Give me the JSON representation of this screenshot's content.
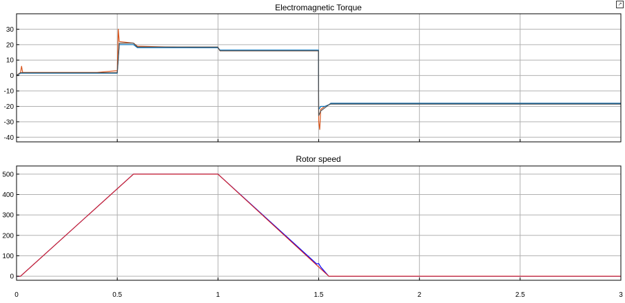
{
  "chart_data": [
    {
      "type": "line",
      "title": "Electromagnetic Torque",
      "xlabel": "",
      "ylabel": "",
      "xlim": [
        0,
        3
      ],
      "ylim": [
        -43,
        40
      ],
      "yticks": [
        30,
        20,
        10,
        0,
        -10,
        -20,
        -30,
        -40
      ],
      "ytick_labels": [
        "30",
        "20",
        "10",
        "0",
        "-10",
        "-20",
        "-30",
        "-40"
      ],
      "xticks": [
        0,
        0.5,
        1,
        1.5,
        2,
        2.5,
        3
      ],
      "grid": true,
      "legend": "none",
      "series": [
        {
          "color": "#d95319",
          "x": [
            0,
            0.02,
            0.025,
            0.03,
            0.4,
            0.49,
            0.5,
            0.505,
            0.51,
            0.58,
            0.6,
            0.9,
            0.999,
            1.0,
            1.01,
            1.3,
            1.499,
            1.5,
            1.505,
            1.51,
            1.53,
            1.55,
            1.56,
            2.0,
            2.5,
            3.0
          ],
          "y": [
            0,
            2,
            6,
            2,
            2,
            3,
            3,
            30,
            22,
            21,
            19,
            18,
            18,
            18,
            16,
            16,
            16,
            -30,
            -35,
            -22,
            -20,
            -19,
            -18,
            -18,
            -18,
            -18
          ]
        },
        {
          "color": "#0072bd",
          "x": [
            0,
            0.02,
            0.03,
            0.49,
            0.5,
            0.51,
            0.58,
            0.6,
            0.999,
            1.01,
            1.499,
            1.5,
            1.51,
            1.53,
            1.55,
            1.56,
            2.0,
            2.5,
            3.0
          ],
          "y": [
            0,
            1.5,
            1.5,
            1.5,
            1.5,
            20,
            20,
            18,
            18,
            16.5,
            16.5,
            -22,
            -20,
            -20,
            -19,
            -18,
            -18,
            -18,
            -18
          ]
        },
        {
          "color": "#4d4d4d",
          "x": [
            0,
            0.02,
            0.03,
            0.49,
            0.5,
            0.51,
            0.58,
            0.6,
            0.999,
            1.01,
            1.499,
            1.5,
            1.51,
            1.53,
            1.55,
            1.56,
            2.0,
            2.5,
            3.0
          ],
          "y": [
            0,
            1.8,
            1.8,
            1.8,
            1.8,
            21,
            21,
            18.5,
            18.5,
            16,
            16,
            -26,
            -23,
            -21,
            -19,
            -18.5,
            -18.5,
            -18.5,
            -18.5
          ]
        }
      ]
    },
    {
      "type": "line",
      "title": "Rotor speed",
      "xlabel": "",
      "ylabel": "",
      "xlim": [
        0,
        3
      ],
      "ylim": [
        -20,
        540
      ],
      "yticks": [
        500,
        400,
        300,
        200,
        100,
        0
      ],
      "ytick_labels": [
        "500",
        "400",
        "300",
        "200",
        "100",
        "0"
      ],
      "xticks": [
        0,
        0.5,
        1,
        1.5,
        2,
        2.5,
        3
      ],
      "xtick_labels": [
        "0",
        "0.5",
        "1",
        "1.5",
        "2",
        "2.5",
        "3"
      ],
      "grid": true,
      "legend": "none",
      "series": [
        {
          "color": "#0000ff",
          "x": [
            0,
            0.02,
            0.58,
            1.0,
            1.49,
            1.5,
            1.51,
            1.55,
            3.0
          ],
          "y": [
            0,
            0,
            500,
            500,
            60,
            62,
            45,
            0,
            0
          ]
        },
        {
          "color": "#d62728",
          "x": [
            0,
            0.02,
            0.58,
            1.0,
            1.55,
            3.0
          ],
          "y": [
            0,
            0,
            500,
            500,
            0,
            0
          ]
        }
      ]
    }
  ]
}
